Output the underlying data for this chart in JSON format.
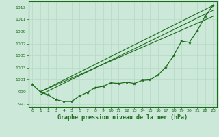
{
  "xlabel": "Graphe pression niveau de la mer (hPa)",
  "bg_color": "#cce8d8",
  "grid_color": "#aad4c0",
  "line_color": "#1a6b1a",
  "xlim": [
    -0.5,
    23.5
  ],
  "ylim": [
    996.5,
    1014.0
  ],
  "yticks": [
    997,
    999,
    1001,
    1003,
    1005,
    1007,
    1009,
    1011,
    1013
  ],
  "xticks": [
    0,
    1,
    2,
    3,
    4,
    5,
    6,
    7,
    8,
    9,
    10,
    11,
    12,
    13,
    14,
    15,
    16,
    17,
    18,
    19,
    20,
    21,
    22,
    23
  ],
  "pressure_data": [
    1000.2,
    999.0,
    998.5,
    997.7,
    997.4,
    997.4,
    998.3,
    998.9,
    999.7,
    999.9,
    1000.5,
    1000.4,
    1000.6,
    1000.4,
    1000.9,
    1001.0,
    1001.8,
    1003.1,
    1005.0,
    1007.4,
    1007.2,
    1009.1,
    1011.5,
    1013.3
  ],
  "trend_lines": [
    {
      "x0": 1,
      "y0": 999.0,
      "x1": 23,
      "y1": 1013.3
    },
    {
      "x0": 1,
      "y0": 999.0,
      "x1": 23,
      "y1": 1011.5
    },
    {
      "x0": 1,
      "y0": 998.5,
      "x1": 23,
      "y1": 1012.5
    }
  ]
}
